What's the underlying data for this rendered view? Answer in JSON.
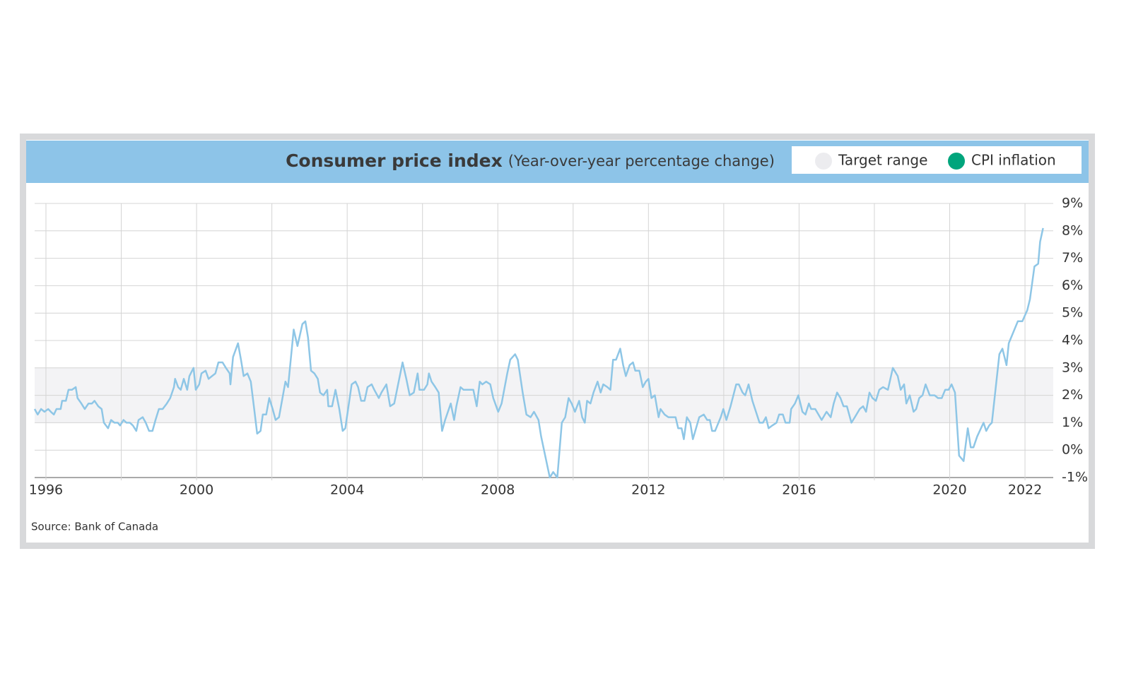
{
  "chart_data": {
    "type": "line",
    "title": "Consumer price index",
    "subtitle": "(Year-over-year percentage change)",
    "source": "Source: Bank of Canada",
    "xlim": [
      1995.7,
      2022.75
    ],
    "xticks": [
      1996,
      2000,
      2004,
      2008,
      2012,
      2016,
      2020,
      2022
    ],
    "xgrid": [
      1996,
      1998,
      2000,
      2002,
      2004,
      2006,
      2008,
      2010,
      2012,
      2014,
      2016,
      2018,
      2020,
      2022
    ],
    "ylim": [
      -1,
      9
    ],
    "yticks": [
      {
        "value": -1,
        "label": "-1%"
      },
      {
        "value": 0,
        "label": "0%"
      },
      {
        "value": 1,
        "label": "1%"
      },
      {
        "value": 2,
        "label": "2%"
      },
      {
        "value": 3,
        "label": "3%"
      },
      {
        "value": 4,
        "label": "4%"
      },
      {
        "value": 5,
        "label": "5%"
      },
      {
        "value": 6,
        "label": "6%"
      },
      {
        "value": 7,
        "label": "7%"
      },
      {
        "value": 8,
        "label": "8%"
      },
      {
        "value": 9,
        "label": "9%"
      }
    ],
    "grid": true,
    "legend": "top-right",
    "bands": [
      {
        "name": "Target range",
        "color": "#f3f3f5",
        "legend_color": "#ececef",
        "range": [
          1,
          3
        ]
      }
    ],
    "series": [
      {
        "name": "CPI inflation",
        "color": "#8ec6e6",
        "legend_color": "#00a57c",
        "x": [
          1995.7,
          1995.78,
          1995.87,
          1995.96,
          1996.06,
          1996.13,
          1996.21,
          1996.28,
          1996.39,
          1996.43,
          1996.53,
          1996.6,
          1996.69,
          1996.79,
          1996.84,
          1996.94,
          1997.03,
          1997.13,
          1997.22,
          1997.29,
          1997.39,
          1997.48,
          1997.54,
          1997.65,
          1997.73,
          1997.82,
          1997.91,
          1997.97,
          1998.06,
          1998.14,
          1998.23,
          1998.31,
          1998.4,
          1998.46,
          1998.57,
          1998.65,
          1998.74,
          1998.83,
          1998.91,
          1999.0,
          1999.1,
          1999.21,
          1999.3,
          1999.4,
          1999.43,
          1999.51,
          1999.58,
          1999.66,
          1999.75,
          1999.81,
          1999.92,
          1999.98,
          2000.07,
          2000.13,
          2000.24,
          2000.32,
          2000.41,
          2000.5,
          2000.58,
          2000.69,
          2000.78,
          2000.88,
          2000.9,
          2000.97,
          2001.1,
          2001.18,
          2001.25,
          2001.35,
          2001.44,
          2001.53,
          2001.61,
          2001.7,
          2001.76,
          2001.85,
          2001.93,
          2002.02,
          2002.1,
          2002.19,
          2002.36,
          2002.43,
          2002.58,
          2002.68,
          2002.81,
          2002.89,
          2002.96,
          2003.04,
          2003.13,
          2003.22,
          2003.28,
          2003.37,
          2003.47,
          2003.5,
          2003.6,
          2003.69,
          2003.79,
          2003.88,
          2003.95,
          2004.12,
          2004.22,
          2004.29,
          2004.37,
          2004.46,
          2004.54,
          2004.65,
          2004.72,
          2004.84,
          2004.91,
          2005.04,
          2005.14,
          2005.25,
          2005.47,
          2005.57,
          2005.66,
          2005.77,
          2005.87,
          2005.92,
          2006.04,
          2006.13,
          2006.17,
          2006.24,
          2006.34,
          2006.43,
          2006.52,
          2006.6,
          2006.75,
          2006.84,
          2006.9,
          2007.01,
          2007.09,
          2007.18,
          2007.26,
          2007.35,
          2007.44,
          2007.52,
          2007.59,
          2007.69,
          2007.8,
          2007.88,
          2008.01,
          2008.1,
          2008.25,
          2008.33,
          2008.46,
          2008.53,
          2008.66,
          2008.76,
          2008.87,
          2008.96,
          2009.08,
          2009.15,
          2009.38,
          2009.47,
          2009.58,
          2009.7,
          2009.79,
          2009.88,
          2009.96,
          2010.05,
          2010.16,
          2010.24,
          2010.31,
          2010.37,
          2010.46,
          2010.54,
          2010.65,
          2010.73,
          2010.8,
          2010.91,
          2010.99,
          2011.06,
          2011.14,
          2011.25,
          2011.33,
          2011.4,
          2011.5,
          2011.59,
          2011.65,
          2011.76,
          2011.85,
          2011.93,
          2012.0,
          2012.08,
          2012.17,
          2012.27,
          2012.32,
          2012.43,
          2012.53,
          2012.64,
          2012.72,
          2012.79,
          2012.88,
          2012.94,
          2013.02,
          2013.11,
          2013.18,
          2013.35,
          2013.47,
          2013.56,
          2013.63,
          2013.69,
          2013.77,
          2013.92,
          2013.99,
          2014.07,
          2014.18,
          2014.33,
          2014.4,
          2014.5,
          2014.57,
          2014.66,
          2014.76,
          2014.95,
          2015.04,
          2015.12,
          2015.19,
          2015.29,
          2015.4,
          2015.47,
          2015.57,
          2015.64,
          2015.75,
          2015.79,
          2015.89,
          2015.98,
          2016.09,
          2016.17,
          2016.26,
          2016.32,
          2016.43,
          2016.6,
          2016.73,
          2016.84,
          2016.92,
          2017.01,
          2017.1,
          2017.18,
          2017.27,
          2017.39,
          2017.48,
          2017.61,
          2017.7,
          2017.78,
          2017.87,
          2017.95,
          2018.04,
          2018.13,
          2018.23,
          2018.36,
          2018.49,
          2018.62,
          2018.7,
          2018.79,
          2018.85,
          2018.94,
          2019.04,
          2019.11,
          2019.19,
          2019.28,
          2019.36,
          2019.47,
          2019.6,
          2019.69,
          2019.79,
          2019.88,
          2019.97,
          2020.05,
          2020.14,
          2020.25,
          2020.37,
          2020.48,
          2020.56,
          2020.63,
          2020.73,
          2020.9,
          2020.97,
          2021.05,
          2021.12,
          2021.32,
          2021.4,
          2021.51,
          2021.57,
          2021.81,
          2021.93,
          2022.06,
          2022.13,
          2022.19,
          2022.25,
          2022.35,
          2022.4,
          2022.48
        ],
        "values": [
          1.5,
          1.3,
          1.5,
          1.4,
          1.5,
          1.4,
          1.3,
          1.5,
          1.5,
          1.8,
          1.8,
          2.2,
          2.2,
          2.3,
          1.9,
          1.7,
          1.5,
          1.7,
          1.7,
          1.8,
          1.6,
          1.5,
          1.0,
          0.8,
          1.1,
          1.0,
          1.0,
          0.9,
          1.1,
          1.0,
          1.0,
          0.9,
          0.7,
          1.1,
          1.2,
          1.0,
          0.7,
          0.7,
          1.1,
          1.5,
          1.5,
          1.7,
          1.9,
          2.3,
          2.6,
          2.3,
          2.2,
          2.6,
          2.2,
          2.7,
          3.0,
          2.2,
          2.4,
          2.8,
          2.9,
          2.6,
          2.7,
          2.8,
          3.2,
          3.2,
          3.0,
          2.8,
          2.4,
          3.4,
          3.9,
          3.3,
          2.7,
          2.8,
          2.5,
          1.5,
          0.6,
          0.7,
          1.3,
          1.3,
          1.9,
          1.5,
          1.1,
          1.2,
          2.5,
          2.3,
          4.4,
          3.8,
          4.6,
          4.7,
          4.1,
          2.9,
          2.8,
          2.6,
          2.1,
          2.0,
          2.2,
          1.6,
          1.6,
          2.2,
          1.5,
          0.7,
          0.8,
          2.4,
          2.5,
          2.3,
          1.8,
          1.8,
          2.3,
          2.4,
          2.2,
          1.9,
          2.1,
          2.4,
          1.6,
          1.7,
          3.2,
          2.6,
          2.0,
          2.1,
          2.8,
          2.2,
          2.2,
          2.4,
          2.8,
          2.5,
          2.3,
          2.1,
          0.7,
          1.1,
          1.7,
          1.1,
          1.6,
          2.3,
          2.2,
          2.2,
          2.2,
          2.2,
          1.6,
          2.5,
          2.4,
          2.5,
          2.4,
          1.9,
          1.4,
          1.7,
          2.8,
          3.3,
          3.5,
          3.3,
          2.1,
          1.3,
          1.2,
          1.4,
          1.1,
          0.5,
          -1.0,
          -0.8,
          -1.0,
          1.0,
          1.2,
          1.9,
          1.7,
          1.4,
          1.8,
          1.2,
          1.0,
          1.8,
          1.7,
          2.1,
          2.5,
          2.1,
          2.4,
          2.3,
          2.2,
          3.3,
          3.3,
          3.7,
          3.1,
          2.7,
          3.1,
          3.2,
          2.9,
          2.9,
          2.3,
          2.5,
          2.6,
          1.9,
          2.0,
          1.2,
          1.5,
          1.3,
          1.2,
          1.2,
          1.2,
          0.8,
          0.8,
          0.4,
          1.2,
          1.0,
          0.4,
          1.2,
          1.3,
          1.1,
          1.1,
          0.7,
          0.7,
          1.2,
          1.5,
          1.1,
          1.6,
          2.4,
          2.4,
          2.1,
          2.0,
          2.4,
          1.8,
          1.0,
          1.0,
          1.2,
          0.8,
          0.9,
          1.0,
          1.3,
          1.3,
          1.0,
          1.0,
          1.5,
          1.7,
          2.0,
          1.4,
          1.3,
          1.7,
          1.5,
          1.5,
          1.1,
          1.4,
          1.2,
          1.7,
          2.1,
          1.9,
          1.6,
          1.6,
          1.0,
          1.2,
          1.5,
          1.6,
          1.4,
          2.1,
          1.9,
          1.8,
          2.2,
          2.3,
          2.2,
          3.0,
          2.7,
          2.2,
          2.4,
          1.7,
          2.0,
          1.4,
          1.5,
          1.9,
          2.0,
          2.4,
          2.0,
          2.0,
          1.9,
          1.9,
          2.2,
          2.2,
          2.4,
          2.1,
          -0.2,
          -0.4,
          0.8,
          0.1,
          0.1,
          0.5,
          1.0,
          0.7,
          0.9,
          1.0,
          3.5,
          3.7,
          3.1,
          3.9,
          4.7,
          4.7,
          5.1,
          5.5,
          6.1,
          6.7,
          6.8,
          7.6,
          8.1
        ]
      }
    ]
  }
}
